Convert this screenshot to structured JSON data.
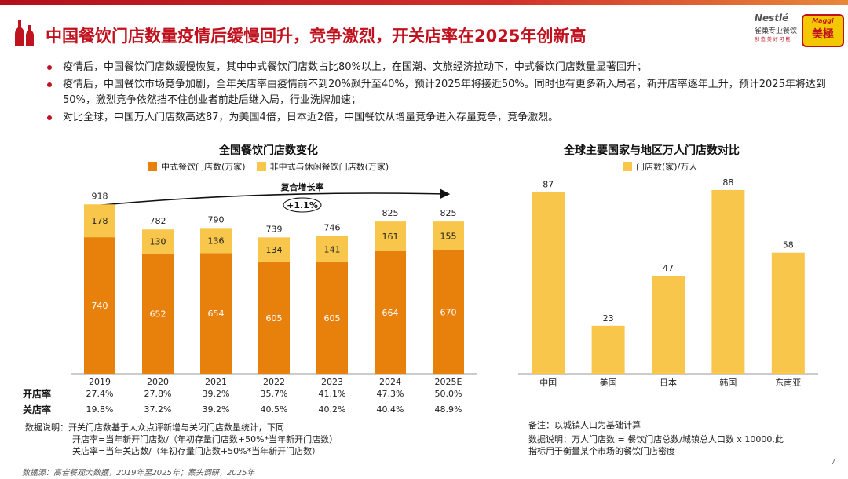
{
  "page": {
    "title": "中国餐饮门店数量疫情后缓慢回升，竞争激烈，开关店率在2025年创新高",
    "bullets": [
      "疫情后，中国餐饮门店数缓慢恢复，其中中式餐饮门店数占比80%以上，在国潮、文旅经济拉动下，中式餐饮门店数量显著回升；",
      "疫情后，中国餐饮市场竞争加剧，全年关店率由疫情前不到20%飙升至40%，预计2025年将接近50%。同时也有更多新入局者，新开店率逐年上升，预计2025年将达到50%，激烈竞争依然挡不住创业者前赴后继入局，行业洗牌加速；",
      "对比全球，中国万人门店数高达87，为美国4倍，日本近2倍，中国餐饮从增量竞争进入存量竞争，竞争激烈。"
    ],
    "source": "数据源：高岩餐观大数据，2019年至2025年；案头调研，2025年",
    "page_number": "7",
    "logo": {
      "nestle": "Nestlé",
      "nestle_sub": "雀巢专业餐饮",
      "nestle_tag": "创 造 美 好 可 能",
      "maggi_brand": "Maggi",
      "maggi_cn": "美極"
    }
  },
  "colors": {
    "accent": "#c0121e",
    "orange": "#e8810c",
    "yellow": "#f7c64a"
  },
  "chart_data": [
    {
      "type": "stacked-bar",
      "title": "全国餐饮门店数变化",
      "categories": [
        "2019",
        "2020",
        "2021",
        "2022",
        "2023",
        "2024",
        "2025E"
      ],
      "series": [
        {
          "name": "中式餐饮门店数(万家)",
          "values": [
            740,
            652,
            654,
            605,
            605,
            664,
            670
          ]
        },
        {
          "name": "非中式与休闲餐饮门店数(万家)",
          "values": [
            178,
            130,
            136,
            134,
            141,
            161,
            155
          ]
        }
      ],
      "totals": [
        918,
        782,
        790,
        739,
        746,
        825,
        825
      ],
      "ylim": [
        0,
        1000
      ],
      "cagr_label": "复合增长率",
      "cagr_value": "+1.1%",
      "rates": {
        "open_label": "开店率",
        "open_values": [
          "27.4%",
          "27.8%",
          "39.2%",
          "35.7%",
          "41.1%",
          "47.3%",
          "50.0%"
        ],
        "close_label": "关店率",
        "close_values": [
          "19.8%",
          "37.2%",
          "39.2%",
          "40.5%",
          "40.2%",
          "40.4%",
          "48.9%"
        ]
      },
      "notes": [
        "数据说明：开关门店数基于大众点评新增与关闭门店数量统计，下同",
        "开店率=当年新开门店数/（年初存量门店数+50%*当年新开门店数）",
        "关店率=当年关店数/（年初存量门店数+50%*当年新开门店数）"
      ]
    },
    {
      "type": "bar",
      "title": "全球主要国家与地区万人门店数对比",
      "series": [
        {
          "name": "门店数(家)/万人",
          "values": [
            87,
            23,
            47,
            88,
            58
          ]
        }
      ],
      "categories": [
        "中国",
        "美国",
        "日本",
        "韩国",
        "东南亚"
      ],
      "ylim": [
        0,
        100
      ],
      "notes": [
        "备注：以城镇人口为基础计算",
        "数据说明：万人门店数 = 餐饮门店总数/城镇总人口数 x 10000,此",
        "指标用于衡量某个市场的餐饮门店密度"
      ]
    }
  ]
}
